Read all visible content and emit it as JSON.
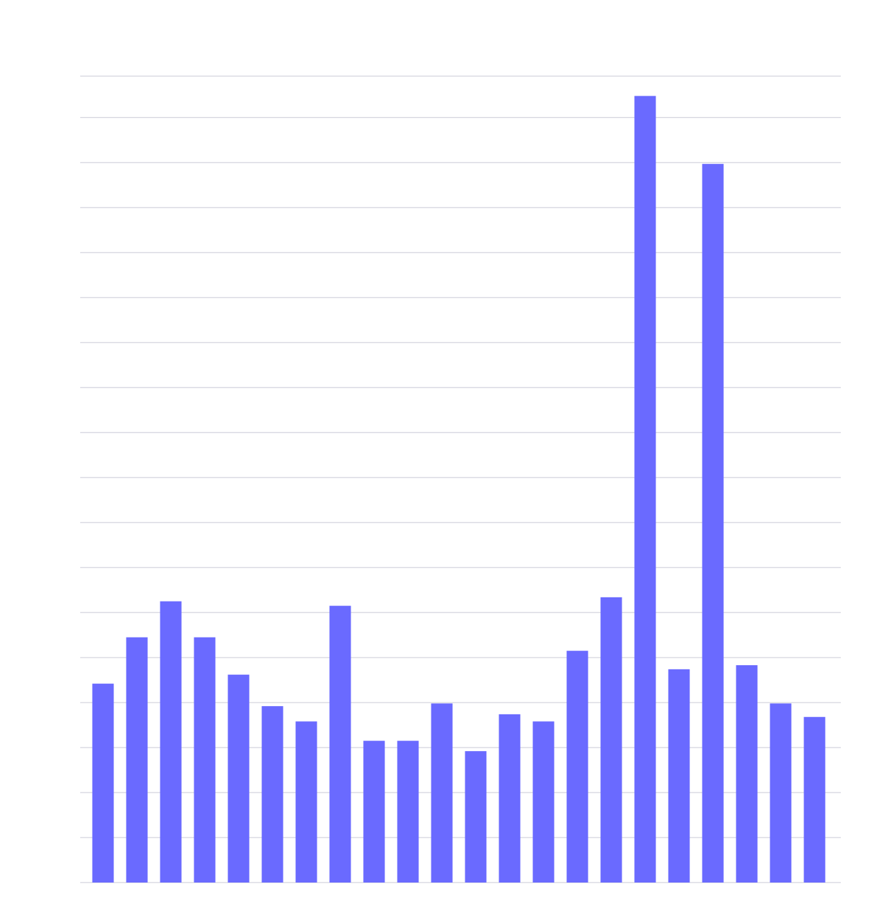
{
  "chart_data": {
    "type": "bar",
    "categories": [
      null,
      null,
      null,
      null,
      null,
      null,
      null,
      null,
      null,
      null,
      null,
      null,
      null,
      null,
      null,
      null,
      null,
      null,
      null,
      null,
      null,
      null
    ],
    "values": [
      4.42,
      5.45,
      6.25,
      5.45,
      4.62,
      3.92,
      3.58,
      6.15,
      3.15,
      3.15,
      3.98,
      2.92,
      3.74,
      3.58,
      5.15,
      6.34,
      17.48,
      4.74,
      15.97,
      4.83,
      3.98,
      3.68
    ],
    "color": "#6a6aff",
    "ylim": [
      0,
      17.92
    ],
    "yticks": [
      0,
      1,
      2,
      3,
      4,
      5,
      6,
      7,
      8,
      9,
      10,
      11,
      12,
      13,
      14,
      15,
      16,
      17
    ],
    "grid": true
  }
}
